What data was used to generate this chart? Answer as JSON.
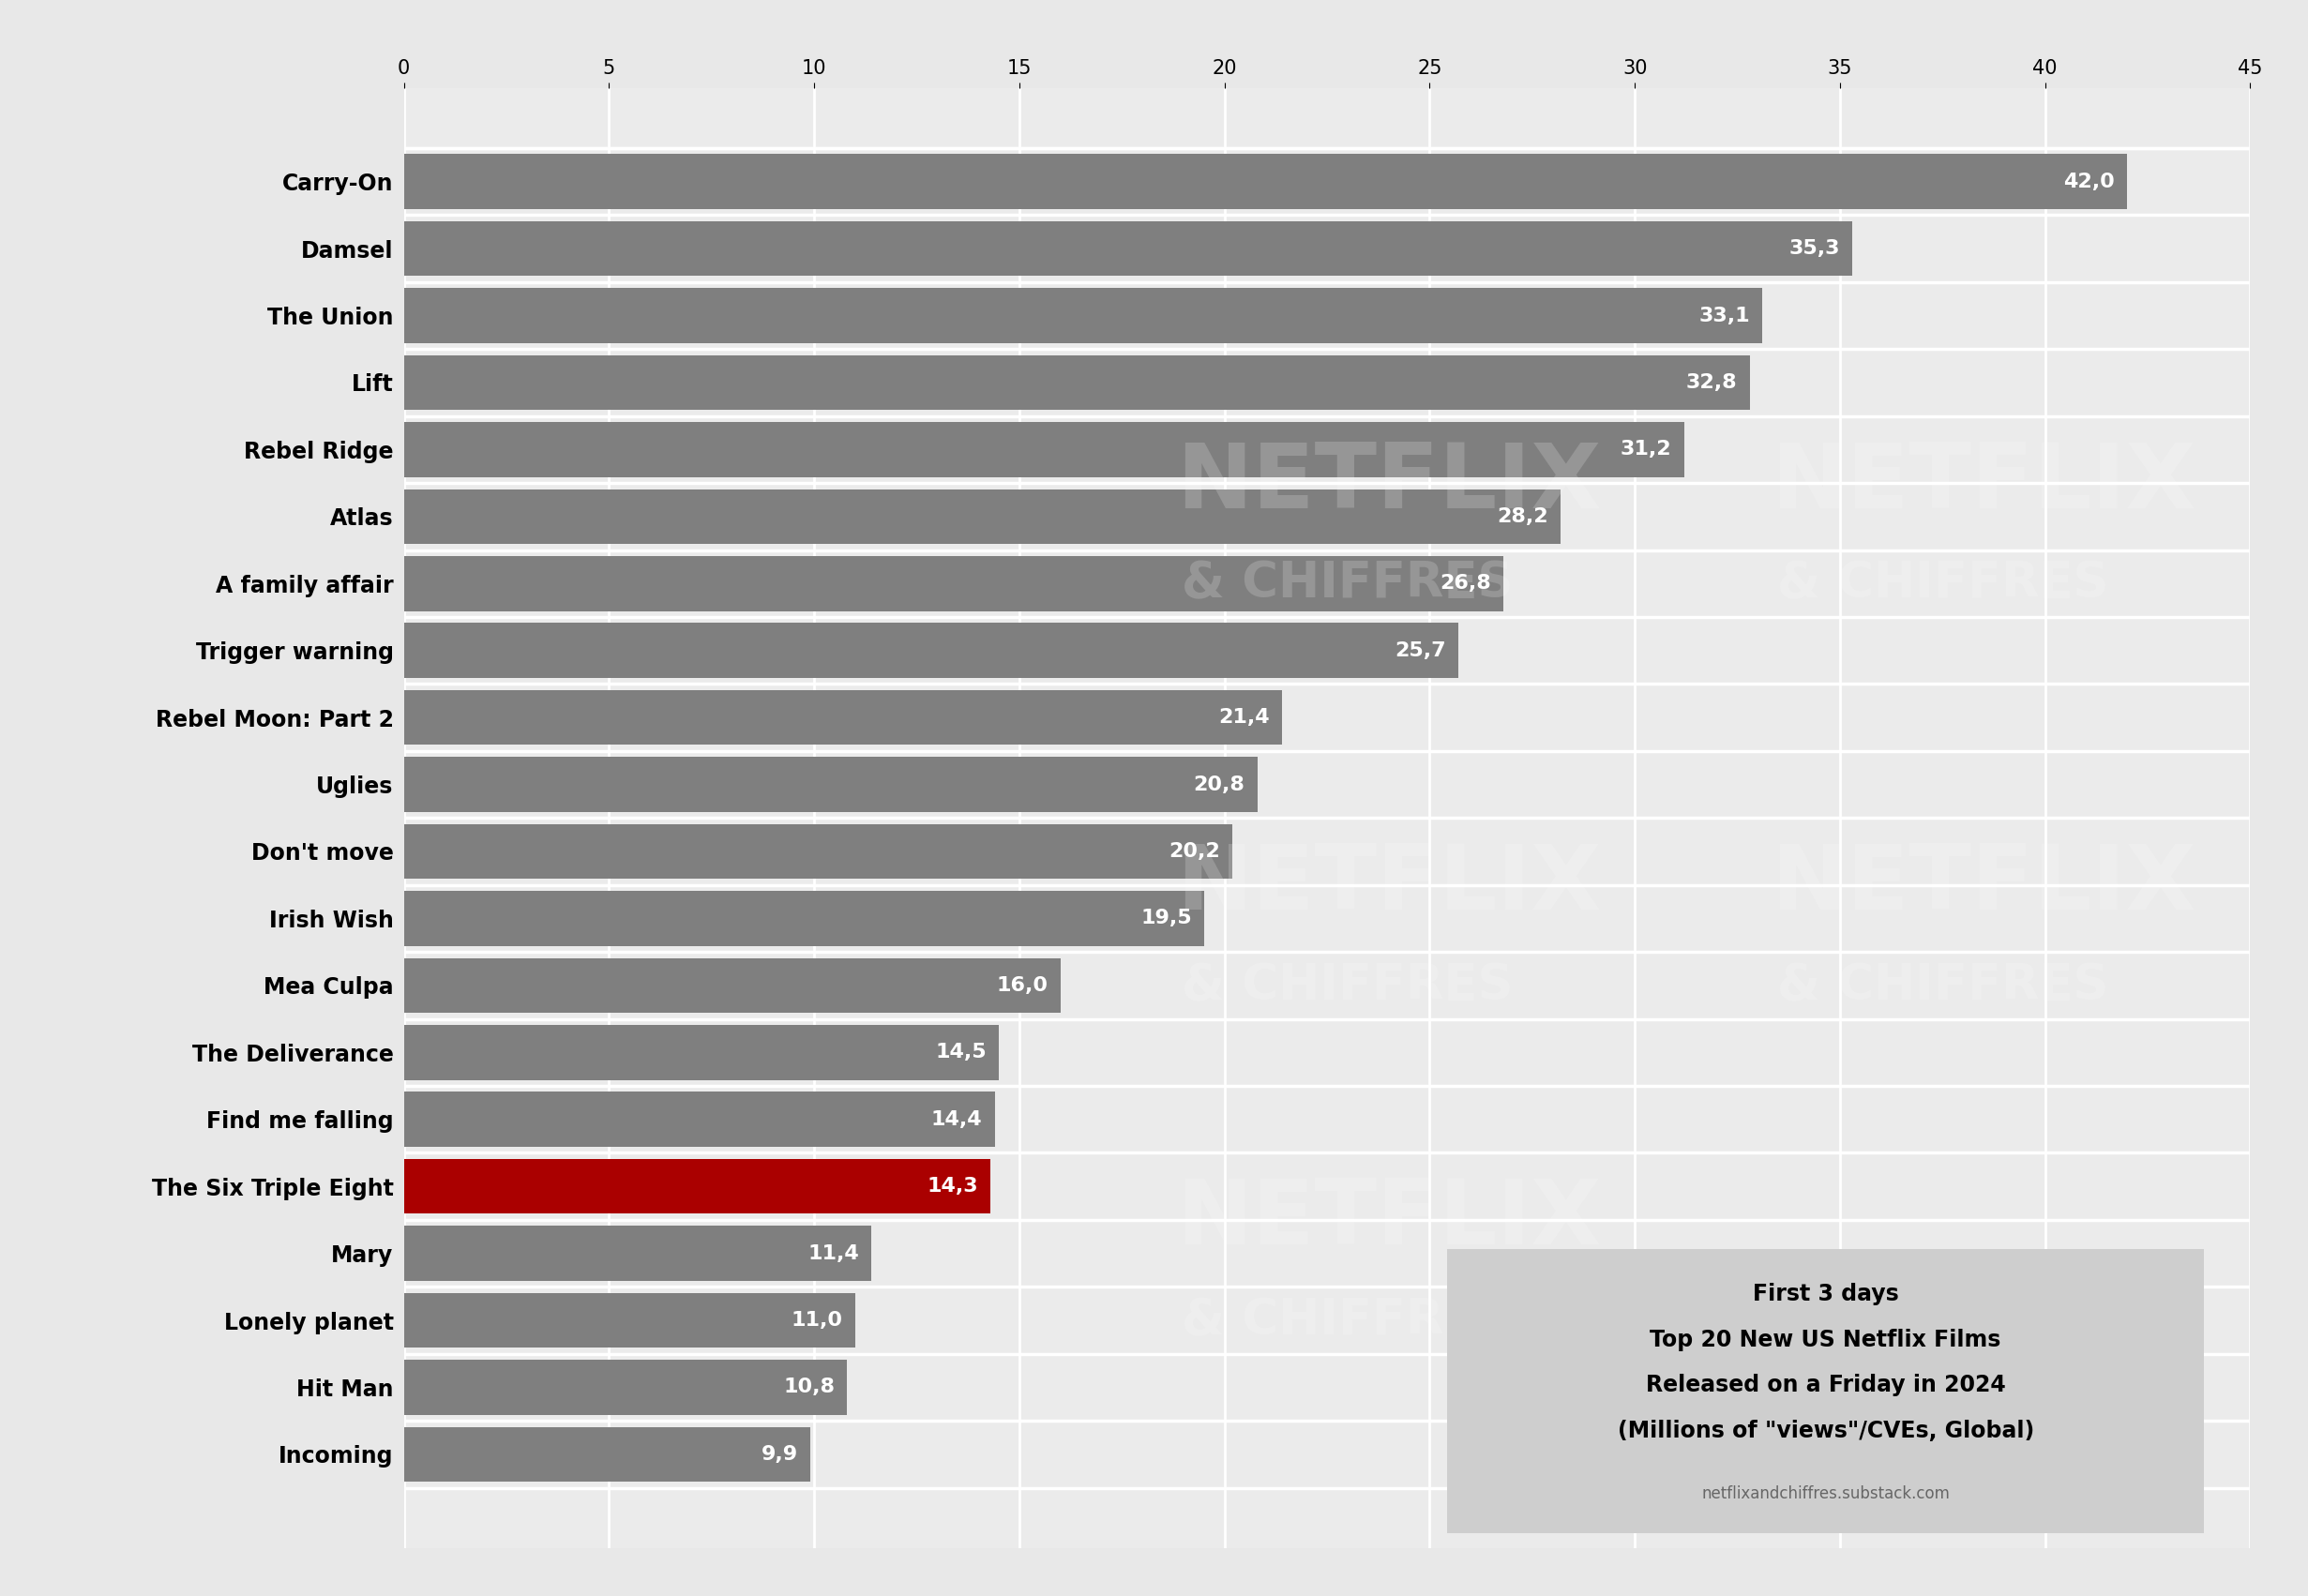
{
  "categories": [
    "Carry-On",
    "Damsel",
    "The Union",
    "Lift",
    "Rebel Ridge",
    "Atlas",
    "A family affair",
    "Trigger warning",
    "Rebel Moon: Part 2",
    "Uglies",
    "Don't move",
    "Irish Wish",
    "Mea Culpa",
    "The Deliverance",
    "Find me falling",
    "The Six Triple Eight",
    "Mary",
    "Lonely planet",
    "Hit Man",
    "Incoming"
  ],
  "values": [
    42.0,
    35.3,
    33.1,
    32.8,
    31.2,
    28.2,
    26.8,
    25.7,
    21.4,
    20.8,
    20.2,
    19.5,
    16.0,
    14.5,
    14.4,
    14.3,
    11.4,
    11.0,
    10.8,
    9.9
  ],
  "labels": [
    "42,0",
    "35,3",
    "33,1",
    "32,8",
    "31,2",
    "28,2",
    "26,8",
    "25,7",
    "21,4",
    "20,8",
    "20,2",
    "19,5",
    "16,0",
    "14,5",
    "14,4",
    "14,3",
    "11,4",
    "11,0",
    "10,8",
    "9,9"
  ],
  "bar_color_default": "#7f7f7f",
  "bar_color_highlight": "#aa0000",
  "highlight_index": 15,
  "background_color": "#e8e8e8",
  "plot_background_color": "#ebebeb",
  "xlim": [
    0,
    45
  ],
  "xticks": [
    0,
    5,
    10,
    15,
    20,
    25,
    30,
    35,
    40,
    45
  ],
  "annotation_box_color": "#cecece",
  "annotation_text_line1": "First 3 days",
  "annotation_text_line2": "Top 20 New US Netflix Films",
  "annotation_text_line3": "Released on a Friday in 2024",
  "annotation_text_line4": "(Millions of \"views\"/CVEs, Global)",
  "annotation_text_line5": "netflixandchiffres.substack.com",
  "watermark_netflix": "NETFLIX",
  "watermark_chiffres": "& CHIFFRES",
  "label_fontsize": 17,
  "tick_fontsize": 15,
  "bar_label_fontsize": 16
}
